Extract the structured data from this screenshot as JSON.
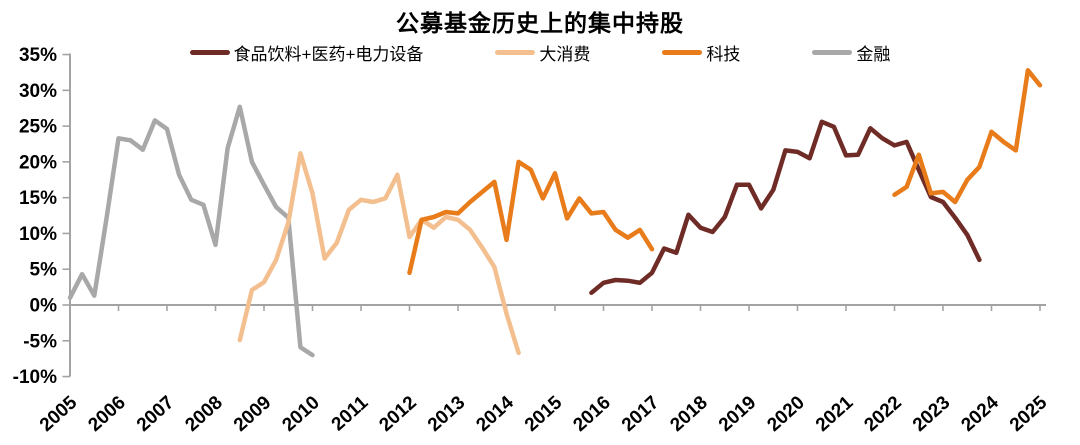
{
  "title": "公募基金历史上的集中持股",
  "chart_data": {
    "type": "line",
    "title": "公募基金历史上的集中持股",
    "x_unit": "year (quarterly data points)",
    "xlim": [
      2004.8,
      2025.3
    ],
    "ylim": [
      -10,
      35
    ],
    "grid": false,
    "legend_position": "top",
    "y_ticks": [
      {
        "v": 35,
        "label": "35%"
      },
      {
        "v": 30,
        "label": "30%"
      },
      {
        "v": 25,
        "label": "25%"
      },
      {
        "v": 20,
        "label": "20%"
      },
      {
        "v": 15,
        "label": "15%"
      },
      {
        "v": 10,
        "label": "10%"
      },
      {
        "v": 5,
        "label": "5%"
      },
      {
        "v": 0,
        "label": "0%"
      },
      {
        "v": -5,
        "label": "-5%"
      },
      {
        "v": -10,
        "label": "-10%"
      }
    ],
    "x_ticks": [
      {
        "v": 2005,
        "label": "2005"
      },
      {
        "v": 2006,
        "label": "2006"
      },
      {
        "v": 2007,
        "label": "2007"
      },
      {
        "v": 2008,
        "label": "2008"
      },
      {
        "v": 2009,
        "label": "2009"
      },
      {
        "v": 2010,
        "label": "2010"
      },
      {
        "v": 2011,
        "label": "2011"
      },
      {
        "v": 2012,
        "label": "2012"
      },
      {
        "v": 2013,
        "label": "2013"
      },
      {
        "v": 2014,
        "label": "2014"
      },
      {
        "v": 2015,
        "label": "2015"
      },
      {
        "v": 2016,
        "label": "2016"
      },
      {
        "v": 2017,
        "label": "2017"
      },
      {
        "v": 2018,
        "label": "2018"
      },
      {
        "v": 2019,
        "label": "2019"
      },
      {
        "v": 2020,
        "label": "2020"
      },
      {
        "v": 2021,
        "label": "2021"
      },
      {
        "v": 2022,
        "label": "2022"
      },
      {
        "v": 2023,
        "label": "2023"
      },
      {
        "v": 2024,
        "label": "2024"
      },
      {
        "v": 2025,
        "label": "2025"
      }
    ],
    "series": [
      {
        "name": "食品饮料+医药+电力设备",
        "color": "#6f2b25",
        "z": 3,
        "segments": [
          [
            [
              2015.75,
              1.7
            ],
            [
              2016.0,
              3.1
            ],
            [
              2016.25,
              3.5
            ],
            [
              2016.5,
              3.4
            ],
            [
              2016.75,
              3.1
            ],
            [
              2017.0,
              4.5
            ],
            [
              2017.25,
              7.9
            ],
            [
              2017.5,
              7.3
            ],
            [
              2017.75,
              12.6
            ],
            [
              2018.0,
              10.8
            ],
            [
              2018.25,
              10.2
            ],
            [
              2018.5,
              12.3
            ],
            [
              2018.75,
              16.8
            ],
            [
              2019.0,
              16.8
            ],
            [
              2019.25,
              13.5
            ],
            [
              2019.5,
              16.1
            ],
            [
              2019.75,
              21.6
            ],
            [
              2020.0,
              21.4
            ],
            [
              2020.25,
              20.5
            ],
            [
              2020.5,
              25.6
            ],
            [
              2020.75,
              24.9
            ],
            [
              2021.0,
              20.9
            ],
            [
              2021.25,
              21.0
            ],
            [
              2021.5,
              24.7
            ],
            [
              2021.75,
              23.3
            ],
            [
              2022.0,
              22.3
            ],
            [
              2022.25,
              22.8
            ],
            [
              2022.5,
              18.9
            ],
            [
              2022.75,
              15.1
            ],
            [
              2023.0,
              14.4
            ],
            [
              2023.25,
              12.2
            ],
            [
              2023.5,
              9.8
            ],
            [
              2023.75,
              6.3
            ]
          ]
        ]
      },
      {
        "name": "大消费",
        "color": "#f3bf8f",
        "z": 2,
        "segments": [
          [
            [
              2008.5,
              -4.9
            ],
            [
              2008.75,
              2.1
            ],
            [
              2009.0,
              3.2
            ],
            [
              2009.25,
              6.3
            ],
            [
              2009.5,
              11.5
            ],
            [
              2009.75,
              21.2
            ],
            [
              2010.0,
              15.6
            ],
            [
              2010.25,
              6.5
            ],
            [
              2010.5,
              8.7
            ],
            [
              2010.75,
              13.3
            ],
            [
              2011.0,
              14.7
            ],
            [
              2011.25,
              14.4
            ],
            [
              2011.5,
              14.9
            ],
            [
              2011.75,
              18.2
            ],
            [
              2012.0,
              9.5
            ],
            [
              2012.25,
              11.9
            ],
            [
              2012.5,
              10.8
            ],
            [
              2012.75,
              12.3
            ],
            [
              2013.0,
              11.9
            ],
            [
              2013.25,
              10.5
            ],
            [
              2013.5,
              8.0
            ],
            [
              2013.75,
              5.3
            ],
            [
              2014.0,
              -1.2
            ],
            [
              2014.25,
              -6.7
            ]
          ]
        ]
      },
      {
        "name": "科技",
        "color": "#e87b1a",
        "z": 4,
        "segments": [
          [
            [
              2012.0,
              4.5
            ],
            [
              2012.25,
              11.9
            ],
            [
              2012.5,
              12.3
            ],
            [
              2012.75,
              13.0
            ],
            [
              2013.0,
              12.8
            ],
            [
              2013.25,
              14.4
            ],
            [
              2013.5,
              15.8
            ],
            [
              2013.75,
              17.2
            ],
            [
              2014.0,
              9.1
            ],
            [
              2014.25,
              20.0
            ],
            [
              2014.5,
              18.9
            ],
            [
              2014.75,
              14.9
            ],
            [
              2015.0,
              18.4
            ],
            [
              2015.25,
              12.1
            ],
            [
              2015.5,
              14.9
            ],
            [
              2015.75,
              12.8
            ],
            [
              2016.0,
              13.0
            ],
            [
              2016.25,
              10.5
            ],
            [
              2016.5,
              9.4
            ],
            [
              2016.75,
              10.5
            ],
            [
              2017.0,
              7.8
            ]
          ],
          [
            [
              2022.0,
              15.4
            ],
            [
              2022.25,
              16.5
            ],
            [
              2022.5,
              21.0
            ],
            [
              2022.75,
              15.6
            ],
            [
              2023.0,
              15.8
            ],
            [
              2023.25,
              14.4
            ],
            [
              2023.5,
              17.5
            ],
            [
              2023.75,
              19.3
            ],
            [
              2024.0,
              24.2
            ],
            [
              2024.25,
              22.8
            ],
            [
              2024.5,
              21.6
            ],
            [
              2024.75,
              32.8
            ],
            [
              2025.0,
              30.7
            ]
          ]
        ]
      },
      {
        "name": "金融",
        "color": "#a8a8a8",
        "z": 1,
        "segments": [
          [
            [
              2005.0,
              1.0
            ],
            [
              2005.25,
              4.3
            ],
            [
              2005.5,
              1.3
            ],
            [
              2005.75,
              12.0
            ],
            [
              2006.0,
              23.3
            ],
            [
              2006.25,
              23.0
            ],
            [
              2006.5,
              21.7
            ],
            [
              2006.75,
              25.8
            ],
            [
              2007.0,
              24.6
            ],
            [
              2007.25,
              18.2
            ],
            [
              2007.5,
              14.7
            ],
            [
              2007.75,
              14.0
            ],
            [
              2008.0,
              8.4
            ],
            [
              2008.25,
              21.9
            ],
            [
              2008.5,
              27.7
            ],
            [
              2008.75,
              20.0
            ],
            [
              2009.0,
              16.8
            ],
            [
              2009.25,
              13.7
            ],
            [
              2009.5,
              12.2
            ],
            [
              2009.75,
              -5.9
            ],
            [
              2010.0,
              -7.0
            ]
          ]
        ]
      }
    ]
  }
}
